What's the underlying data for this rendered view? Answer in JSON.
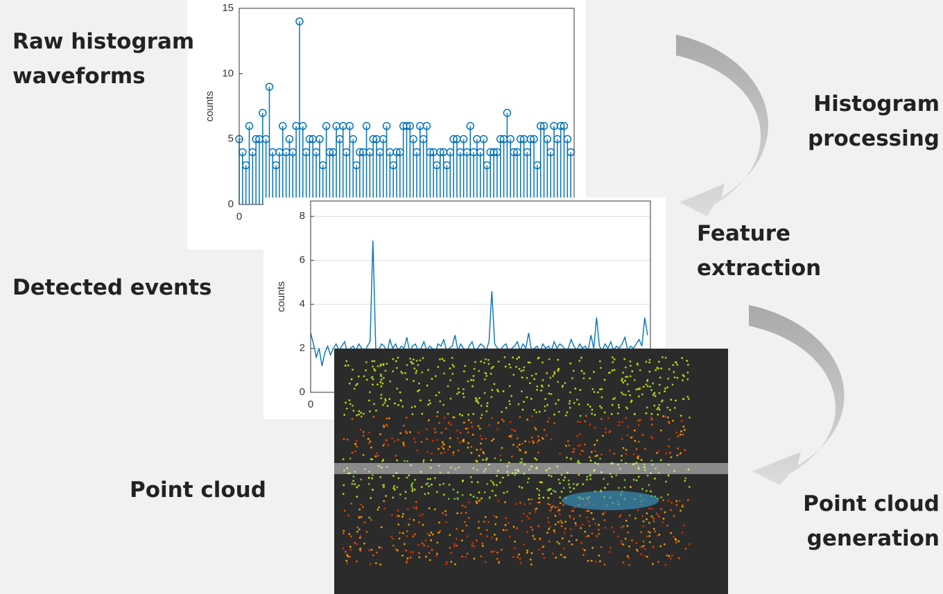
{
  "labels": {
    "raw": "Raw histogram waveforms",
    "detected": "Detected events",
    "cloud": "Point cloud",
    "processing": "Histogram processing",
    "feature": "Feature extraction",
    "generation": "Point cloud generation"
  },
  "charts": [
    {
      "type": "stem",
      "ylabel": "counts",
      "color": "#0072bd",
      "xlim": [
        0,
        100
      ],
      "xticks": [
        0
      ],
      "ylim": [
        0,
        15
      ],
      "yticks": [
        0,
        5,
        10,
        15
      ],
      "values": [
        5,
        4,
        3,
        6,
        4,
        5,
        5,
        7,
        5,
        9,
        4,
        3,
        4,
        6,
        4,
        5,
        4,
        6,
        14,
        6,
        4,
        5,
        5,
        4,
        5,
        3,
        6,
        4,
        4,
        6,
        5,
        6,
        4,
        6,
        5,
        3,
        4,
        4,
        6,
        4,
        5,
        5,
        4,
        5,
        6,
        4,
        3,
        4,
        4,
        6,
        6,
        6,
        5,
        4,
        6,
        5,
        6,
        4,
        4,
        3,
        4,
        4,
        3,
        4,
        5,
        5,
        4,
        5,
        4,
        6,
        4,
        5,
        4,
        5,
        3,
        4,
        4,
        4,
        5,
        5,
        7,
        5,
        4,
        4,
        5,
        5,
        4,
        5,
        5,
        3,
        6,
        6,
        5,
        4,
        6,
        5,
        6,
        6,
        5,
        4
      ]
    },
    {
      "type": "line",
      "ylabel": "counts",
      "color": "#0072bd",
      "xlim": [
        0,
        120
      ],
      "xticks": [
        0
      ],
      "ylim": [
        0,
        8.7
      ],
      "yticks": [
        0,
        2,
        4,
        6,
        8
      ],
      "grid": true,
      "values": [
        2.7,
        2.2,
        1.6,
        2.0,
        1.2,
        1.8,
        2.1,
        1.7,
        2.0,
        2.2,
        1.9,
        2.1,
        2.3,
        1.8,
        2.0,
        2.1,
        1.9,
        2.2,
        2.0,
        1.8,
        2.1,
        2.3,
        6.9,
        2.0,
        1.9,
        2.2,
        2.1,
        1.8,
        2.4,
        2.0,
        2.2,
        1.9,
        2.1,
        2.0,
        2.5,
        1.8,
        2.1,
        2.2,
        1.9,
        2.0,
        2.3,
        1.9,
        2.1,
        2.0,
        1.8,
        2.2,
        2.1,
        2.4,
        1.9,
        2.0,
        2.1,
        2.6,
        1.9,
        2.2,
        2.0,
        1.8,
        2.1,
        2.3,
        1.9,
        2.0,
        2.2,
        2.1,
        1.9,
        2.3,
        4.6,
        2.2,
        2.0,
        1.9,
        2.1,
        2.2,
        1.8,
        2.0,
        2.1,
        2.3,
        1.9,
        2.2,
        2.0,
        2.7,
        1.9,
        2.0,
        2.1,
        1.8,
        2.2,
        2.0,
        2.1,
        1.9,
        2.3,
        2.0,
        2.2,
        2.1,
        1.9,
        2.0,
        2.4,
        2.1,
        1.9,
        2.2,
        2.0,
        2.1,
        1.9,
        2.6,
        2.0,
        3.4,
        2.1,
        1.9,
        2.2,
        2.0,
        2.3,
        1.9,
        2.1,
        2.0,
        2.2,
        2.5,
        1.9,
        2.1,
        2.0,
        2.2,
        2.4,
        2.1,
        3.4,
        2.6
      ]
    }
  ]
}
